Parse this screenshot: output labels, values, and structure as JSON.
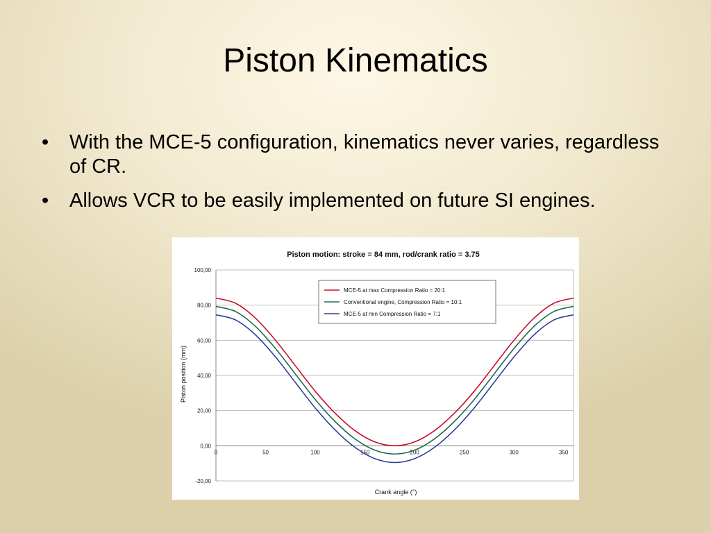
{
  "slide": {
    "title": "Piston Kinematics",
    "bullets": [
      "With the MCE-5 configuration, kinematics never varies, regardless of CR.",
      "Allows VCR to be easily implemented on future SI engines."
    ]
  },
  "chart_data": {
    "type": "line",
    "title": "Piston motion: stroke = 84 mm, rod/crank ratio = 3.75",
    "xlabel": "Crank angle (°)",
    "ylabel": "Piston position (mm)",
    "xlim": [
      0,
      360
    ],
    "ylim": [
      -20,
      100
    ],
    "x_ticks": [
      "0",
      "50",
      "100",
      "150",
      "200",
      "250",
      "300",
      "350"
    ],
    "y_ticks": [
      "-20,00",
      "0,00",
      "20,00",
      "40,00",
      "60,00",
      "80,00",
      "100,00"
    ],
    "grid": "horizontal",
    "legend_position": "top-center",
    "x": [
      0,
      20,
      40,
      60,
      80,
      100,
      120,
      140,
      160,
      180,
      200,
      220,
      240,
      260,
      280,
      300,
      320,
      340,
      360
    ],
    "series": [
      {
        "name": "MCE-5 at max Compression Ratio = 20:1",
        "color": "#c8102e",
        "values": [
          84.0,
          81.0,
          72.5,
          60.0,
          45.5,
          31.0,
          18.5,
          8.6,
          2.2,
          0.0,
          2.2,
          8.6,
          18.5,
          31.0,
          45.5,
          60.0,
          72.5,
          81.0,
          84.0
        ]
      },
      {
        "name": "Conventional engine, Compression Ratio = 10:1",
        "color": "#1e6b52",
        "values": [
          79.3,
          76.3,
          67.8,
          55.3,
          40.8,
          26.3,
          13.8,
          3.9,
          -2.5,
          -4.7,
          -2.5,
          3.9,
          13.8,
          26.3,
          40.8,
          55.3,
          67.8,
          76.3,
          79.3
        ]
      },
      {
        "name": "MCE-5 at min Compression Ratio = 7:1",
        "color": "#2e3d9a",
        "values": [
          74.5,
          71.5,
          63.0,
          50.5,
          36.0,
          21.5,
          9.0,
          -0.9,
          -7.3,
          -9.5,
          -7.3,
          -0.9,
          9.0,
          21.5,
          36.0,
          50.5,
          63.0,
          71.5,
          74.5
        ]
      }
    ]
  }
}
